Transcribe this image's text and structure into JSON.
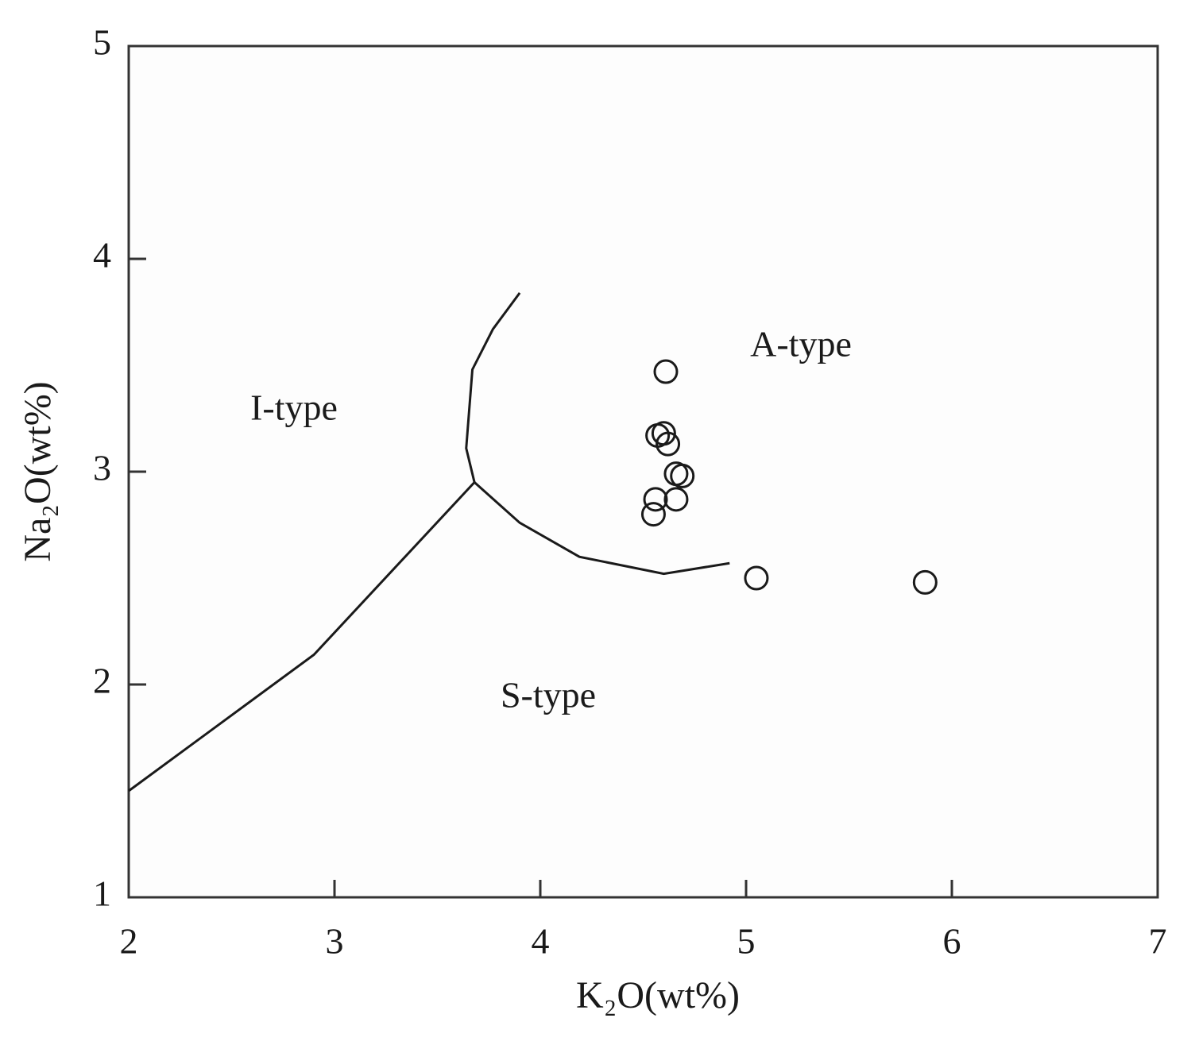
{
  "chart_data": {
    "type": "scatter",
    "xlabel": "K₂O(wt%)",
    "ylabel": "Na₂O(wt%)",
    "xlim": [
      2,
      7
    ],
    "ylim": [
      1,
      5
    ],
    "xticks": [
      2,
      3,
      4,
      5,
      6,
      7
    ],
    "yticks": [
      1,
      2,
      3,
      4,
      5
    ],
    "annotations": [
      "I-type",
      "A-type",
      "S-type"
    ],
    "color": "#1a1a1a",
    "points": {
      "x": [
        4.61,
        4.6,
        4.57,
        4.62,
        4.66,
        4.69,
        4.66,
        4.56,
        4.55,
        5.05,
        5.87
      ],
      "y": [
        3.47,
        3.18,
        3.17,
        3.13,
        2.99,
        2.98,
        2.87,
        2.87,
        2.8,
        2.5,
        2.48
      ]
    },
    "boundaries": [
      {
        "x": [
          2.0,
          2.9,
          3.68
        ],
        "y": [
          1.5,
          2.14,
          2.95
        ]
      },
      {
        "x": [
          3.68,
          3.64,
          3.67,
          3.77,
          3.9
        ],
        "y": [
          2.95,
          3.11,
          3.48,
          3.67,
          3.84
        ]
      },
      {
        "x": [
          3.68,
          3.9,
          4.19,
          4.6,
          4.92
        ],
        "y": [
          2.95,
          2.76,
          2.6,
          2.52,
          2.57
        ]
      }
    ]
  }
}
